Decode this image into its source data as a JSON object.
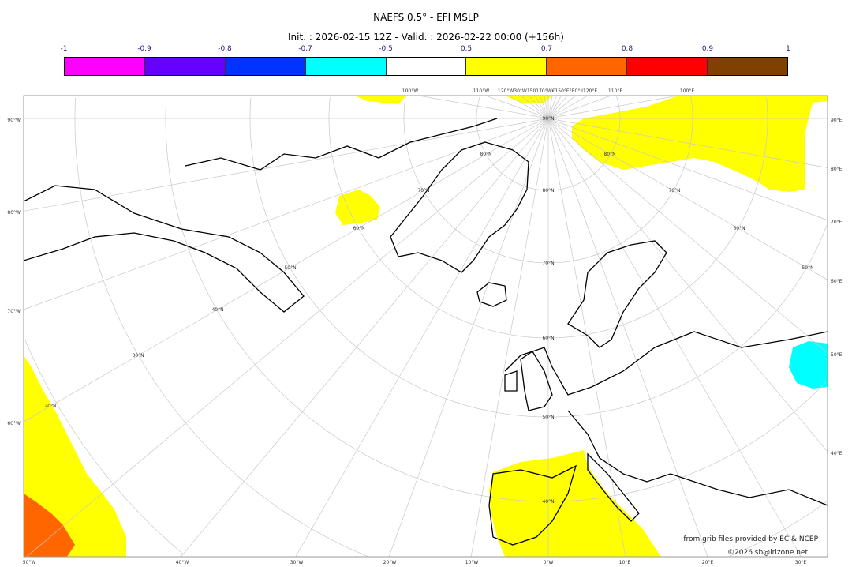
{
  "title": "NAEFS 0.5° - EFI MSLP",
  "subtitle": "Init. : 2026-02-15 12Z - Valid. : 2026-02-22 00:00 (+156h)",
  "colorbar": {
    "ticks": [
      "-1",
      "-0.9",
      "-0.8",
      "-0.7",
      "-0.5",
      "0.5",
      "0.7",
      "0.8",
      "0.9",
      "1"
    ],
    "colors": [
      "#ff00ff",
      "#6600ff",
      "#0033ff",
      "#00ffff",
      "#ffffff",
      "#ffff00",
      "#ff6600",
      "#ff0000",
      "#804000"
    ]
  },
  "map": {
    "left_labels": [
      "90°W",
      "80°W",
      "70°W",
      "60°W"
    ],
    "right_labels": [
      "90°E",
      "80°E",
      "70°E",
      "60°E",
      "50°E",
      "40°E"
    ],
    "bottom_labels": [
      "50°W",
      "40°W",
      "30°W",
      "20°W",
      "10°W",
      "0°W",
      "10°E",
      "20°E",
      "30°E"
    ],
    "top_labels": [
      "100°W",
      "110°W",
      "120°W30°W150170°W€150°E°E0°II120°E",
      "110°E",
      "100°E"
    ],
    "lat_labels": [
      "90°N",
      "80°N",
      "80°N",
      "70°N",
      "70°N",
      "60°N",
      "60°N",
      "50°N",
      "50°N",
      "40°N",
      "30°N",
      "20°N",
      "80°N",
      "70°N",
      "60°N",
      "50°N",
      "40°N"
    ],
    "region_colors": {
      "yellow": "#ffff00",
      "orange": "#ff6600",
      "cyan": "#00ffff"
    }
  },
  "credits": {
    "source": "from grib files provided by EC & NCEP",
    "copyright": "©2026 sb@irizone.net"
  }
}
